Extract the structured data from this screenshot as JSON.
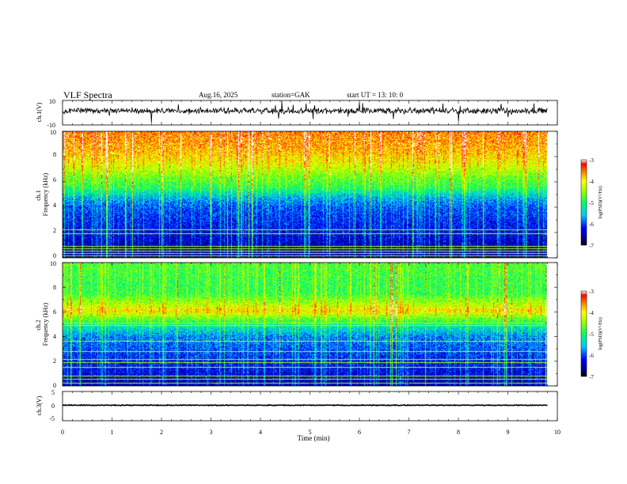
{
  "header": {
    "title": "VLF  Spectra",
    "date": "Aug.16, 2025",
    "station": "station=GAK",
    "start_ut": "start  UT  =    13: 10: 0"
  },
  "chart_data": [
    {
      "id": "ch1_waveform",
      "type": "line",
      "ylabel": "ch.1(V)",
      "ylim": [
        -10,
        10
      ],
      "ytick_labels": [
        "10",
        "-10"
      ],
      "xlim": [
        0,
        10
      ],
      "data_extent_min": [
        0,
        9.8
      ],
      "baseline_v": 1.5,
      "noise_amplitude_v": 3,
      "spike_amplitude_v": 8
    },
    {
      "id": "ch1_spectrogram",
      "type": "heatmap",
      "ylabel": "ch.1\nFrequency (kHz)",
      "ylim": [
        0,
        10
      ],
      "ytick_labels": [
        "0",
        "2",
        "4",
        "6",
        "8",
        "10"
      ],
      "xlim": [
        0,
        10
      ],
      "data_extent_min": [
        0,
        9.8
      ],
      "colorbar": {
        "label": "log(PSD)(V²/Hz)",
        "range": [
          -7,
          -3
        ],
        "tick_labels": [
          "-3",
          "-4",
          "-5",
          "-6",
          "-7"
        ]
      },
      "band_profile_khz": [
        [
          0,
          -6.6
        ],
        [
          2,
          -6.3
        ],
        [
          4,
          -6.0
        ],
        [
          4.8,
          -5.6
        ],
        [
          5.5,
          -5.0
        ],
        [
          6.5,
          -4.6
        ],
        [
          7.5,
          -4.1
        ],
        [
          8.5,
          -3.8
        ],
        [
          10,
          -3.6
        ]
      ],
      "lines_khz": [
        0.1,
        0.3,
        0.5,
        0.7,
        0.9,
        1.9,
        2.2
      ]
    },
    {
      "id": "ch2_spectrogram",
      "type": "heatmap",
      "ylabel": "ch.2\nFrequency (kHz)",
      "ylim": [
        0,
        10
      ],
      "ytick_labels": [
        "0",
        "2",
        "4",
        "6",
        "8",
        "10"
      ],
      "xlim": [
        0,
        10
      ],
      "data_extent_min": [
        0,
        9.8
      ],
      "colorbar": {
        "label": "log(PSD)(V²/Hz)",
        "range": [
          -7,
          -3
        ],
        "tick_labels": [
          "-3",
          "-4",
          "-5",
          "-6",
          "-7"
        ]
      },
      "band_profile_khz": [
        [
          0,
          -6.5
        ],
        [
          2,
          -6.2
        ],
        [
          4,
          -5.8
        ],
        [
          5,
          -5.2
        ],
        [
          6.1,
          -4.0
        ],
        [
          6.5,
          -4.3
        ],
        [
          7.5,
          -4.9
        ],
        [
          8.5,
          -4.9
        ],
        [
          10,
          -4.8
        ]
      ],
      "lines_khz": [
        0.2,
        0.5,
        0.8,
        1.5,
        1.9,
        2.1,
        2.8,
        3.6,
        4.9,
        5.1,
        6.1,
        6.3
      ]
    },
    {
      "id": "ch3_waveform",
      "type": "line",
      "ylabel": "ch.3(V)",
      "ylim": [
        -5,
        5
      ],
      "ytick_labels": [
        "5",
        "0",
        "-5"
      ],
      "xlim": [
        0,
        10
      ],
      "data_extent_min": [
        0,
        9.8
      ],
      "baseline_v": 0.3,
      "noise_amplitude_v": 0.15
    }
  ],
  "time_axis": {
    "label": "Time  (min)",
    "tick_labels": [
      "0",
      "1",
      "2",
      "3",
      "4",
      "5",
      "6",
      "7",
      "8",
      "9",
      "10"
    ]
  },
  "colors": {
    "axis": "#000000",
    "background": "#ffffff"
  }
}
